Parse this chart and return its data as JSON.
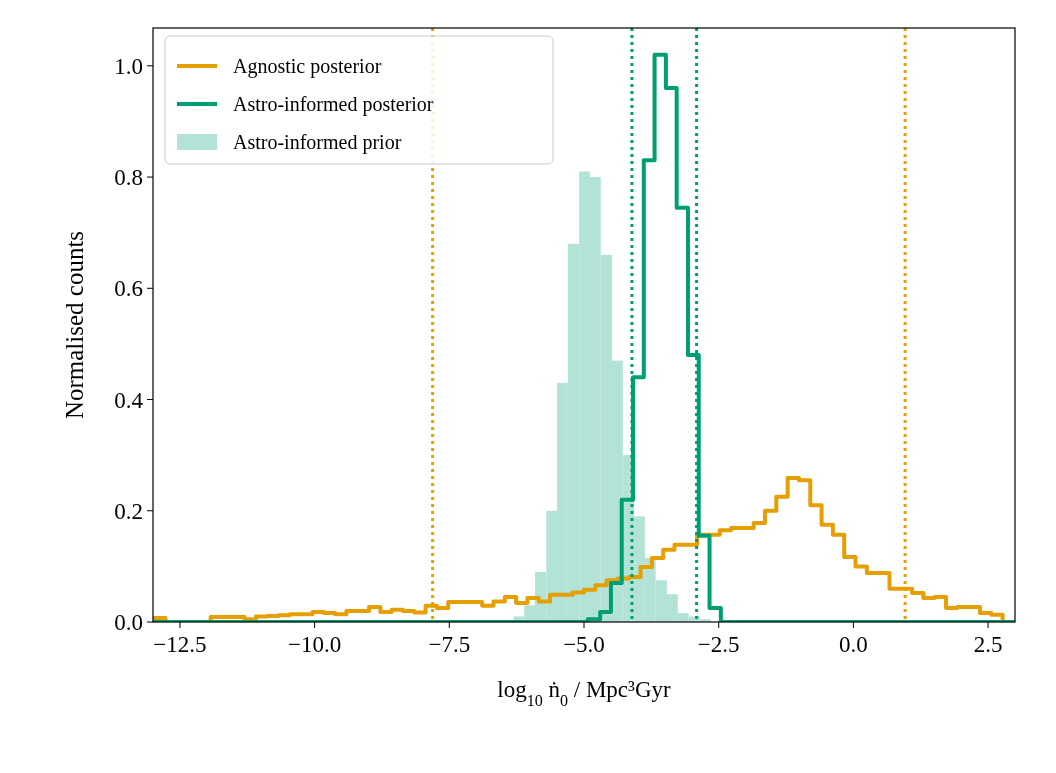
{
  "chart_data": {
    "type": "histogram",
    "xlabel": "log$_{10}$ ṅ$_{0}$ / Mpc³Gyr",
    "ylabel": "Normalised counts",
    "xlim": [
      -13,
      3
    ],
    "ylim": [
      0,
      1.068
    ],
    "xticks": [
      {
        "value": -12.5,
        "label": "−12.5"
      },
      {
        "value": -10,
        "label": "−10.0"
      },
      {
        "value": -7.5,
        "label": "−7.5"
      },
      {
        "value": -5,
        "label": "−5.0"
      },
      {
        "value": -2.5,
        "label": "−2.5"
      },
      {
        "value": 0,
        "label": "0.0"
      },
      {
        "value": 2.5,
        "label": "2.5"
      }
    ],
    "yticks": [
      {
        "value": 0,
        "label": "0.0"
      },
      {
        "value": 0.2,
        "label": "0.2"
      },
      {
        "value": 0.4,
        "label": "0.4"
      },
      {
        "value": 0.6,
        "label": "0.6"
      },
      {
        "value": 0.8,
        "label": "0.8"
      },
      {
        "value": 1,
        "label": "1.0"
      }
    ],
    "legend": "top left",
    "grid": false,
    "bins": [
      -6.31,
      -6.11,
      -5.91,
      -5.7,
      -5.5,
      -5.3,
      -5.09,
      -4.89,
      -4.69,
      -4.48,
      -4.28,
      -4.07,
      -3.87,
      -3.67,
      -3.46,
      -3.26,
      -3.06,
      -2.85,
      -2.65
    ],
    "series": [
      {
        "name": "Astro-informed prior",
        "type": "histogram",
        "color": "#b3e2d7",
        "values": [
          0.01,
          0.03,
          0.09,
          0.2,
          0.43,
          0.68,
          0.81,
          0.8,
          0.66,
          0.47,
          0.3,
          0.19,
          0.115,
          0.075,
          0.05,
          0.016,
          0.01,
          0.005
        ]
      },
      {
        "name": "Agnostic posterior",
        "type": "step",
        "color": "#e69f00",
        "x": [
          -12.98,
          -12.77,
          -12.56,
          -12.35,
          -12.14,
          -11.93,
          -11.72,
          -11.51,
          -11.3,
          -11.09,
          -10.88,
          -10.67,
          -10.46,
          -10.25,
          -10.04,
          -9.83,
          -9.62,
          -9.41,
          -9.2,
          -8.99,
          -8.78,
          -8.57,
          -8.36,
          -8.15,
          -7.94,
          -7.73,
          -7.52,
          -7.31,
          -7.1,
          -6.89,
          -6.68,
          -6.47,
          -6.26,
          -6.05,
          -5.84,
          -5.63,
          -5.42,
          -5.21,
          -5,
          -4.79,
          -4.58,
          -4.37,
          -4.16,
          -3.95,
          -3.74,
          -3.53,
          -3.32,
          -3.11,
          -2.9,
          -2.69,
          -2.48,
          -2.27,
          -2.06,
          -1.85,
          -1.64,
          -1.43,
          -1.22,
          -1.01,
          -0.8,
          -0.59,
          -0.38,
          -0.17,
          0.04,
          0.25,
          0.46,
          0.67,
          0.88,
          1.09,
          1.3,
          1.51,
          1.72,
          1.93,
          2.14,
          2.35,
          2.56,
          2.77
        ],
        "values": [
          0.007,
          0,
          0,
          0,
          0,
          0.009,
          0.009,
          0.009,
          0.005,
          0.01,
          0.011,
          0.012,
          0.014,
          0.014,
          0.018,
          0.016,
          0.014,
          0.02,
          0.02,
          0.027,
          0.018,
          0.022,
          0.02,
          0.017,
          0.029,
          0.025,
          0.036,
          0.036,
          0.036,
          0.029,
          0.037,
          0.045,
          0.034,
          0.043,
          0.037,
          0.049,
          0.049,
          0.053,
          0.058,
          0.066,
          0.075,
          0.078,
          0.081,
          0.099,
          0.115,
          0.13,
          0.139,
          0.139,
          0.157,
          0.157,
          0.165,
          0.169,
          0.169,
          0.178,
          0.2,
          0.225,
          0.259,
          0.255,
          0.21,
          0.175,
          0.157,
          0.117,
          0.1,
          0.088,
          0.088,
          0.06,
          0.06,
          0.052,
          0.043,
          0.045,
          0.025,
          0.027,
          0.027,
          0.016,
          0.013,
          0
        ]
      },
      {
        "name": "Astro-informed posterior",
        "type": "step",
        "color": "#009e73",
        "x": [
          -13,
          -4.93,
          -4.7,
          -4.5,
          -4.3,
          -4.09,
          -3.89,
          -3.69,
          -3.48,
          -3.28,
          -3.07,
          -2.87,
          -2.67,
          -2.46,
          3
        ],
        "values": [
          0,
          0.005,
          0.018,
          0.07,
          0.22,
          0.44,
          0.83,
          1.02,
          0.96,
          0.745,
          0.48,
          0.155,
          0.025,
          0,
          0
        ]
      }
    ],
    "ref_lines": [
      {
        "axis": "x",
        "value": -7.81,
        "color": "#e69f00",
        "line_style": "dotted"
      },
      {
        "axis": "x",
        "value": 0.96,
        "color": "#e69f00",
        "line_style": "dotted"
      },
      {
        "axis": "x",
        "value": -4.11,
        "color": "#009e73",
        "line_style": "dotted"
      },
      {
        "axis": "x",
        "value": -2.91,
        "color": "#009e73",
        "line_style": "dotted"
      }
    ]
  }
}
